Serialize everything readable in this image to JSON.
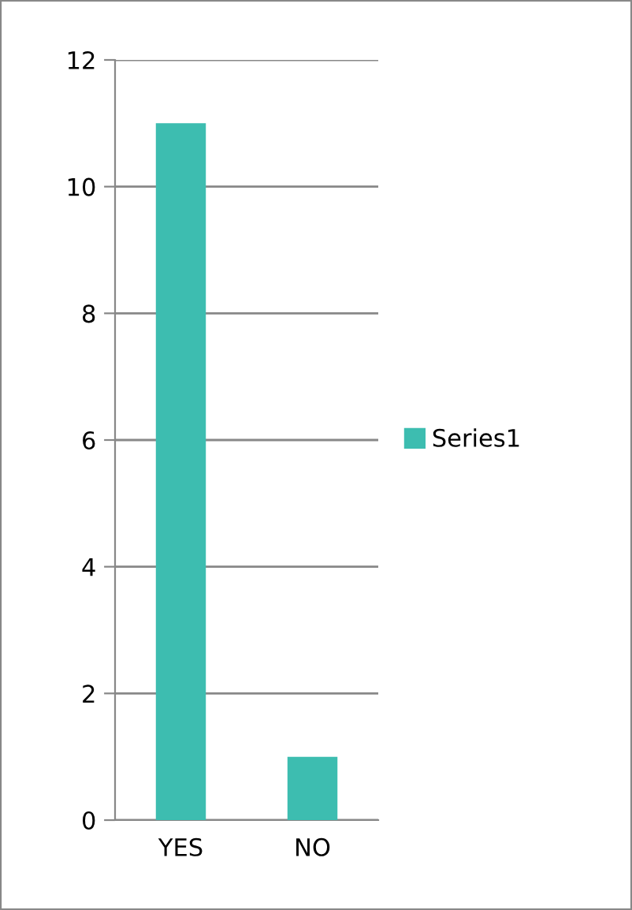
{
  "chart_data": {
    "type": "bar",
    "categories": [
      "YES",
      "NO"
    ],
    "series": [
      {
        "name": "Series1",
        "color": "#3dbdb0",
        "values": [
          11,
          1
        ]
      }
    ],
    "ylim": [
      0,
      12
    ],
    "yticks": [
      0,
      2,
      4,
      6,
      8,
      10,
      12
    ],
    "grid": "y",
    "legend": "right"
  }
}
